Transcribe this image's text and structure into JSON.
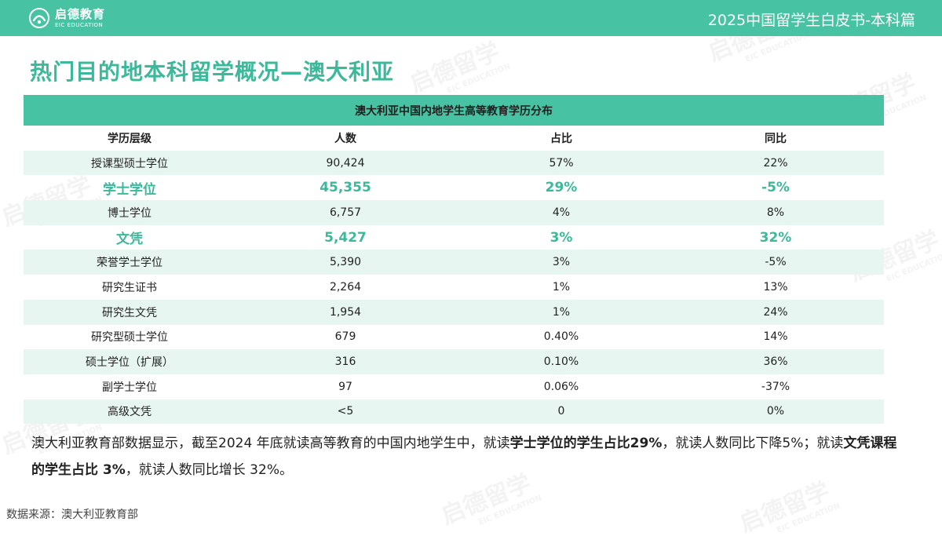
{
  "header": {
    "logo_cn": "启德教育",
    "logo_en": "EIC EDUCATION",
    "title": "2025中国留学生白皮书-本科篇"
  },
  "page_title": "热门目的地本科留学概况—澳大利亚",
  "table": {
    "caption": "澳大利亚中国内地学生高等教育学历分布",
    "columns": [
      "学历层级",
      "人数",
      "占比",
      "同比"
    ],
    "rows": [
      {
        "level": "授课型硕士学位",
        "count": "90,424",
        "share": "57%",
        "yoy": "22%",
        "highlight": false
      },
      {
        "level": "学士学位",
        "count": "45,355",
        "share": "29%",
        "yoy": "-5%",
        "highlight": true
      },
      {
        "level": "博士学位",
        "count": "6,757",
        "share": "4%",
        "yoy": "8%",
        "highlight": false
      },
      {
        "level": "文凭",
        "count": "5,427",
        "share": "3%",
        "yoy": "32%",
        "highlight": true
      },
      {
        "level": "荣誉学士学位",
        "count": "5,390",
        "share": "3%",
        "yoy": "-5%",
        "highlight": false
      },
      {
        "level": "研究生证书",
        "count": "2,264",
        "share": "1%",
        "yoy": "13%",
        "highlight": false
      },
      {
        "level": "研究生文凭",
        "count": "1,954",
        "share": "1%",
        "yoy": "24%",
        "highlight": false
      },
      {
        "level": "研究型硕士学位",
        "count": "679",
        "share": "0.40%",
        "yoy": "14%",
        "highlight": false
      },
      {
        "level": "硕士学位（扩展）",
        "count": "316",
        "share": "0.10%",
        "yoy": "36%",
        "highlight": false
      },
      {
        "level": "副学士学位",
        "count": "97",
        "share": "0.06%",
        "yoy": "-37%",
        "highlight": false
      },
      {
        "level": "高级文凭",
        "count": "<5",
        "share": "0",
        "yoy": "0%",
        "highlight": false
      }
    ]
  },
  "summary": {
    "p1": "澳大利亚教育部数据显示，截至2024 年底就读高等教育的中国内地学生中，就读",
    "b1": "学士学位的学生占比29%",
    "p2": "，就读人数同比下降5%；就读",
    "b2": "文凭课程的学生占比 3%",
    "p3": "，就读人数同比增长 32%。"
  },
  "source": "数据来源：澳大利亚教育部",
  "watermark": {
    "cn": "启德留学",
    "en": "EIC EDUCATION"
  },
  "colors": {
    "accent": "#47c3a4",
    "title": "#3cb89a",
    "row_alt": "#e8f6f2"
  }
}
